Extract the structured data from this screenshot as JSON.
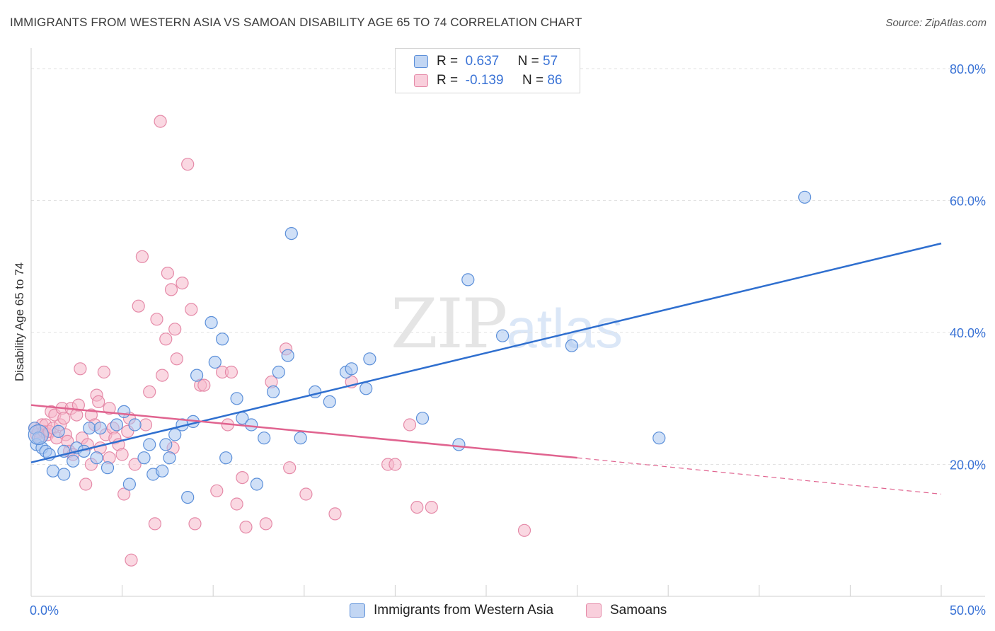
{
  "header": {
    "title": "IMMIGRANTS FROM WESTERN ASIA VS SAMOAN DISABILITY AGE 65 TO 74 CORRELATION CHART",
    "source": "Source: ZipAtlas.com"
  },
  "watermark": {
    "zip": "ZIP",
    "atlas": "atlas"
  },
  "legend": {
    "rows": [
      {
        "r_label": "R =",
        "r_value": "0.637",
        "n_label": "N =",
        "n_value": "57"
      },
      {
        "r_label": "R =",
        "r_value": "-0.139",
        "n_label": "N =",
        "n_value": "86"
      }
    ]
  },
  "colors": {
    "blue_fill": "#a9c6f0",
    "blue_stroke": "#5b8fd9",
    "blue_line": "#2f6fcf",
    "pink_fill": "#f5b8cb",
    "pink_stroke": "#e58aa8",
    "pink_line": "#e0638f",
    "grid": "#e2e2e2",
    "tick_label": "#3a73d6"
  },
  "chart_data": {
    "type": "scatter",
    "title": "IMMIGRANTS FROM WESTERN ASIA VS SAMOAN DISABILITY AGE 65 TO 74 CORRELATION CHART",
    "xlabel": "",
    "ylabel": "Disability Age 65 to 74",
    "xlim": [
      0,
      50
    ],
    "ylim": [
      0,
      80
    ],
    "x_tick_labels": [
      "0.0%",
      "50.0%"
    ],
    "y_ticks": [
      20,
      40,
      60,
      80
    ],
    "y_tick_labels": [
      "20.0%",
      "40.0%",
      "60.0%",
      "80.0%"
    ],
    "grid": true,
    "legend_position": "top-center",
    "series": [
      {
        "name": "Immigrants from Western Asia",
        "color": "#a9c6f0",
        "points": [
          [
            0.2,
            25.5
          ],
          [
            0.3,
            23.0
          ],
          [
            0.4,
            24.0
          ],
          [
            0.6,
            22.5
          ],
          [
            0.8,
            22.0
          ],
          [
            1.0,
            21.5
          ],
          [
            1.2,
            19.0
          ],
          [
            1.5,
            25.0
          ],
          [
            1.8,
            18.5
          ],
          [
            1.8,
            22.0
          ],
          [
            2.3,
            20.5
          ],
          [
            2.5,
            22.5
          ],
          [
            2.9,
            22.0
          ],
          [
            3.2,
            25.5
          ],
          [
            3.6,
            21.0
          ],
          [
            3.8,
            25.5
          ],
          [
            4.2,
            19.5
          ],
          [
            4.7,
            26.0
          ],
          [
            5.1,
            28.0
          ],
          [
            5.4,
            17.0
          ],
          [
            5.7,
            26.0
          ],
          [
            6.2,
            21.0
          ],
          [
            6.5,
            23.0
          ],
          [
            6.7,
            18.5
          ],
          [
            7.2,
            19.0
          ],
          [
            7.4,
            23.0
          ],
          [
            7.6,
            21.0
          ],
          [
            7.9,
            24.5
          ],
          [
            8.3,
            26.0
          ],
          [
            8.6,
            15.0
          ],
          [
            8.9,
            26.5
          ],
          [
            9.1,
            33.5
          ],
          [
            9.9,
            41.5
          ],
          [
            10.1,
            35.5
          ],
          [
            10.5,
            39.0
          ],
          [
            10.7,
            21.0
          ],
          [
            11.3,
            30.0
          ],
          [
            11.6,
            27.0
          ],
          [
            12.1,
            26.0
          ],
          [
            12.4,
            17.0
          ],
          [
            12.8,
            24.0
          ],
          [
            13.3,
            31.0
          ],
          [
            13.6,
            34.0
          ],
          [
            14.1,
            36.5
          ],
          [
            14.3,
            55.0
          ],
          [
            14.8,
            24.0
          ],
          [
            15.6,
            31.0
          ],
          [
            16.4,
            29.5
          ],
          [
            17.3,
            34.0
          ],
          [
            17.6,
            34.5
          ],
          [
            18.4,
            31.5
          ],
          [
            18.6,
            36.0
          ],
          [
            21.5,
            27.0
          ],
          [
            23.5,
            23.0
          ],
          [
            24.0,
            48.0
          ],
          [
            25.9,
            39.5
          ],
          [
            29.7,
            38.0
          ],
          [
            34.5,
            24.0
          ],
          [
            42.5,
            60.5
          ]
        ]
      },
      {
        "name": "Samoans",
        "color": "#f5b8cb",
        "points": [
          [
            0.2,
            25.5
          ],
          [
            0.3,
            24.5
          ],
          [
            0.4,
            25.0
          ],
          [
            0.5,
            24.0
          ],
          [
            0.6,
            26.0
          ],
          [
            0.7,
            25.0
          ],
          [
            0.8,
            26.0
          ],
          [
            0.9,
            24.5
          ],
          [
            1.0,
            25.0
          ],
          [
            1.1,
            28.0
          ],
          [
            1.2,
            25.5
          ],
          [
            1.3,
            27.5
          ],
          [
            1.4,
            24.0
          ],
          [
            1.6,
            26.0
          ],
          [
            1.7,
            28.5
          ],
          [
            1.8,
            27.0
          ],
          [
            1.9,
            24.5
          ],
          [
            2.0,
            23.5
          ],
          [
            2.1,
            22.0
          ],
          [
            2.2,
            28.5
          ],
          [
            2.3,
            21.5
          ],
          [
            2.5,
            27.5
          ],
          [
            2.6,
            29.0
          ],
          [
            2.7,
            34.5
          ],
          [
            2.8,
            24.0
          ],
          [
            3.0,
            17.0
          ],
          [
            3.1,
            23.0
          ],
          [
            3.3,
            27.5
          ],
          [
            3.5,
            26.0
          ],
          [
            3.6,
            30.5
          ],
          [
            3.7,
            29.5
          ],
          [
            3.8,
            22.5
          ],
          [
            4.0,
            34.0
          ],
          [
            4.1,
            24.5
          ],
          [
            4.3,
            28.5
          ],
          [
            4.5,
            25.5
          ],
          [
            4.6,
            24.0
          ],
          [
            4.8,
            23.0
          ],
          [
            5.0,
            21.5
          ],
          [
            5.1,
            15.5
          ],
          [
            5.3,
            25.0
          ],
          [
            5.4,
            27.0
          ],
          [
            5.5,
            5.5
          ],
          [
            5.7,
            20.0
          ],
          [
            5.9,
            44.0
          ],
          [
            6.1,
            51.5
          ],
          [
            6.3,
            26.0
          ],
          [
            6.5,
            31.0
          ],
          [
            6.8,
            11.0
          ],
          [
            6.9,
            42.0
          ],
          [
            7.1,
            72.0
          ],
          [
            7.2,
            33.5
          ],
          [
            7.4,
            39.0
          ],
          [
            7.5,
            49.0
          ],
          [
            7.7,
            46.5
          ],
          [
            7.8,
            22.5
          ],
          [
            7.9,
            40.5
          ],
          [
            8.0,
            36.0
          ],
          [
            8.3,
            47.5
          ],
          [
            8.6,
            65.5
          ],
          [
            8.8,
            43.5
          ],
          [
            9.0,
            11.0
          ],
          [
            9.3,
            32.0
          ],
          [
            9.5,
            32.0
          ],
          [
            10.2,
            16.0
          ],
          [
            10.5,
            34.0
          ],
          [
            10.8,
            26.0
          ],
          [
            11.0,
            34.0
          ],
          [
            11.3,
            14.0
          ],
          [
            11.6,
            18.0
          ],
          [
            11.8,
            10.5
          ],
          [
            12.9,
            11.0
          ],
          [
            13.2,
            32.5
          ],
          [
            14.0,
            37.5
          ],
          [
            14.2,
            19.5
          ],
          [
            15.1,
            15.5
          ],
          [
            17.6,
            32.5
          ],
          [
            19.6,
            20.0
          ],
          [
            20.0,
            20.0
          ],
          [
            20.8,
            26.0
          ],
          [
            21.2,
            13.5
          ],
          [
            22.0,
            13.5
          ],
          [
            27.1,
            10.0
          ],
          [
            16.7,
            12.5
          ],
          [
            4.3,
            21.0
          ],
          [
            3.3,
            20.0
          ]
        ]
      }
    ],
    "trendlines": [
      {
        "series": "Immigrants from Western Asia",
        "from": [
          0,
          20.3
        ],
        "to": [
          50,
          53.5
        ],
        "style": "solid"
      },
      {
        "series": "Samoans",
        "from": [
          0,
          29.0
        ],
        "to": [
          30,
          21.0
        ],
        "style": "solid"
      },
      {
        "series": "Samoans",
        "from": [
          30,
          21.0
        ],
        "to": [
          50,
          15.5
        ],
        "style": "dashed"
      }
    ]
  },
  "bottom_legend": {
    "series_a": "Immigrants from Western Asia",
    "series_b": "Samoans"
  }
}
